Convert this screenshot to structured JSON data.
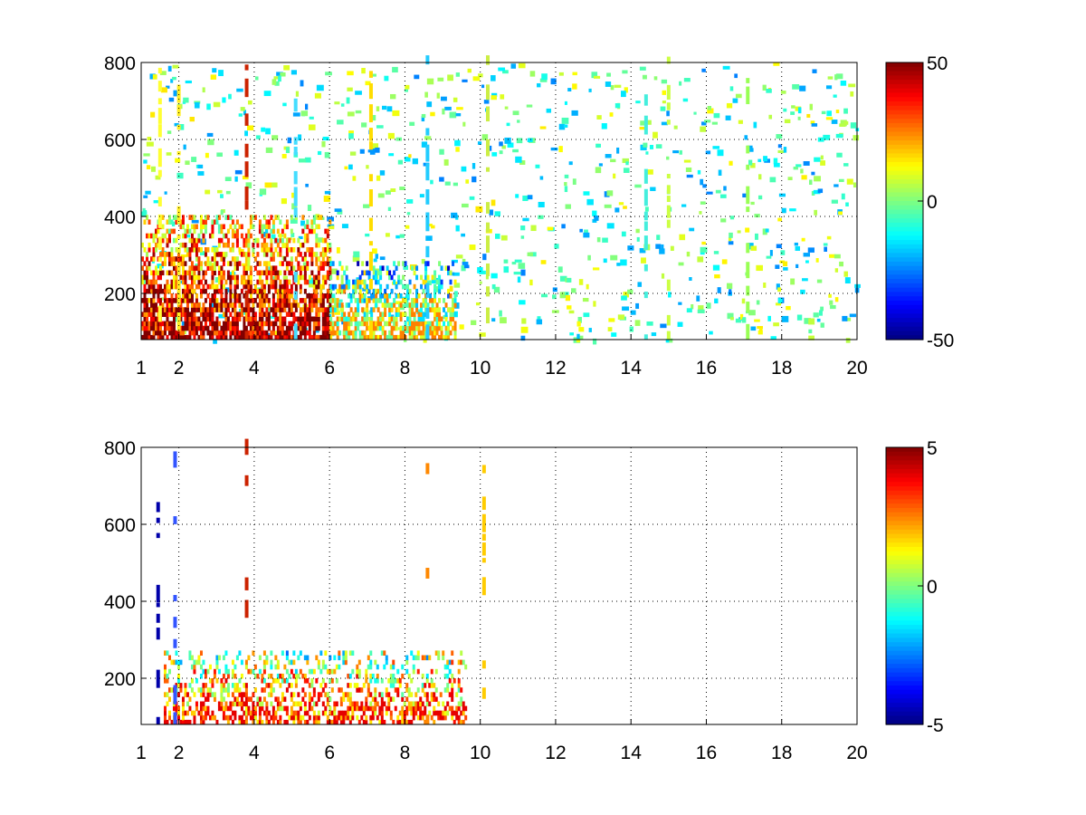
{
  "chart_data": [
    {
      "type": "heatmap",
      "panel": "top",
      "title": "",
      "xlabel": "",
      "ylabel": "",
      "xlim": [
        1,
        20
      ],
      "ylim": [
        80,
        800
      ],
      "grid": true,
      "x_ticks": [
        1,
        2,
        4,
        6,
        8,
        10,
        12,
        14,
        16,
        18,
        20
      ],
      "y_ticks": [
        200,
        400,
        600,
        800
      ],
      "colormap": "jet",
      "colorbar": {
        "min": -50,
        "max": 50,
        "ticks": [
          50,
          0,
          -50
        ]
      },
      "dense_regions": [
        {
          "x": [
            1.0,
            6.0
          ],
          "y": [
            80,
            400
          ],
          "range": [
            -10,
            50
          ],
          "density": 0.85
        },
        {
          "x": [
            6.0,
            9.3
          ],
          "y": [
            80,
            280
          ],
          "range": [
            -50,
            25
          ],
          "density": 0.75
        }
      ],
      "column_streaks": [
        {
          "x": 1.5,
          "color": "#ffff33"
        },
        {
          "x": 2.0,
          "color": "#ffee22"
        },
        {
          "x": 3.8,
          "color": "#cc2200"
        },
        {
          "x": 5.1,
          "color": "#44ddff"
        },
        {
          "x": 7.1,
          "color": "#ffdd00"
        },
        {
          "x": 8.6,
          "color": "#22ccff"
        },
        {
          "x": 10.2,
          "color": "#ccee44"
        },
        {
          "x": 14.4,
          "color": "#44eedd"
        },
        {
          "x": 15.0,
          "color": "#ccff44"
        },
        {
          "x": 17.1,
          "color": "#99ff55"
        }
      ],
      "sparse_region": {
        "x": [
          1.0,
          20.0
        ],
        "y": [
          80,
          800
        ],
        "range": [
          -25,
          15
        ]
      }
    },
    {
      "type": "heatmap",
      "panel": "bottom",
      "title": "",
      "xlabel": "",
      "ylabel": "",
      "xlim": [
        1,
        20
      ],
      "ylim": [
        80,
        800
      ],
      "grid": true,
      "x_ticks": [
        1,
        2,
        4,
        6,
        8,
        10,
        12,
        14,
        16,
        18,
        20
      ],
      "y_ticks": [
        200,
        400,
        600,
        800
      ],
      "colormap": "jet",
      "colorbar": {
        "min": -5,
        "max": 5,
        "ticks": [
          5,
          0,
          -5
        ]
      },
      "dense_regions": [
        {
          "x": [
            1.6,
            9.6
          ],
          "y": [
            80,
            270
          ],
          "range": [
            -3,
            4
          ],
          "density": 0.55
        }
      ],
      "column_streaks": [
        {
          "x": 1.45,
          "color": "#0000aa"
        },
        {
          "x": 1.9,
          "color": "#3355ff"
        },
        {
          "x": 3.8,
          "color": "#cc2200"
        },
        {
          "x": 8.6,
          "color": "#ff8800"
        },
        {
          "x": 10.1,
          "color": "#ffcc00"
        }
      ]
    }
  ]
}
